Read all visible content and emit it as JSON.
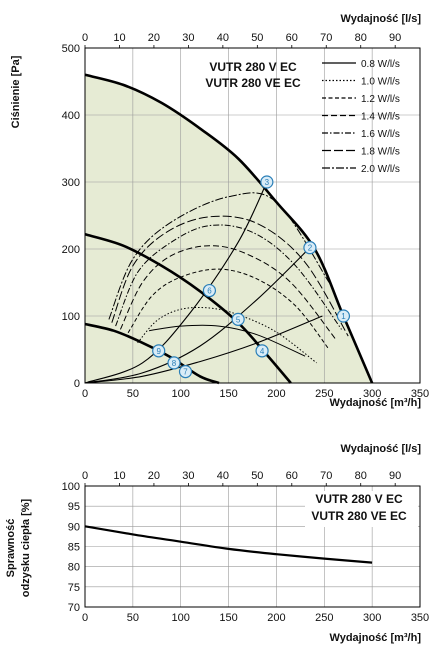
{
  "chart_data": [
    {
      "type": "line",
      "xlabel": "Wydajność [m³/h]",
      "ylabel": "Ciśnienie [Pa]",
      "x2label": "Wydajność [l/s]",
      "xlim": [
        0,
        350
      ],
      "ylim": [
        0,
        500
      ],
      "x2lim": [
        0,
        97.2
      ],
      "xticks": [
        "0",
        "50",
        "100",
        "150",
        "200",
        "250",
        "300",
        "350"
      ],
      "yticks": [
        "0",
        "100",
        "200",
        "300",
        "400",
        "500"
      ],
      "x2ticks": [
        "0",
        "10",
        "20",
        "30",
        "40",
        "50",
        "60",
        "70",
        "80",
        "90"
      ],
      "models": [
        "VUTR 280 V EC",
        "VUTR 280 VE EC"
      ],
      "legend_position": "top-right",
      "grid": true,
      "fan_curves": [
        {
          "name": "max",
          "x": [
            0,
            40,
            80,
            120,
            160,
            200,
            240,
            270,
            300
          ],
          "y": [
            460,
            445,
            418,
            380,
            335,
            270,
            200,
            100,
            0
          ]
        },
        {
          "name": "mid",
          "x": [
            0,
            40,
            80,
            120,
            160,
            190,
            215
          ],
          "y": [
            222,
            205,
            175,
            137,
            90,
            42,
            0
          ]
        },
        {
          "name": "low",
          "x": [
            0,
            30,
            60,
            90,
            120,
            140
          ],
          "y": [
            88,
            78,
            60,
            38,
            10,
            0
          ]
        }
      ],
      "system_curves": [
        {
          "x": [
            0,
            60,
            120,
            180,
            248
          ],
          "y": [
            0,
            10,
            32,
            60,
            100
          ]
        },
        {
          "x": [
            0,
            60,
            120,
            180,
            235
          ],
          "y": [
            0,
            15,
            55,
            125,
            202
          ]
        },
        {
          "x": [
            0,
            60,
            110,
            160,
            190
          ],
          "y": [
            0,
            30,
            105,
            210,
            300
          ]
        }
      ],
      "efficiency_curves": [
        {
          "name": "0.8 W/l/s",
          "dash": "",
          "x": [
            67,
            100,
            140,
            180,
            230
          ],
          "y": [
            78,
            85,
            85,
            72,
            40
          ]
        },
        {
          "name": "1.0 W/l/s",
          "dash": "1.5,2",
          "x": [
            55,
            75,
            100,
            130,
            160,
            200,
            242
          ],
          "y": [
            60,
            93,
            110,
            112,
            102,
            76,
            30
          ]
        },
        {
          "name": "1.2 W/l/s",
          "dash": "4,2.5",
          "x": [
            45,
            70,
            100,
            140,
            180,
            220,
            255
          ],
          "y": [
            75,
            130,
            158,
            170,
            155,
            115,
            50
          ]
        },
        {
          "name": "1.4 W/l/s",
          "dash": "6,3",
          "x": [
            37,
            60,
            90,
            130,
            170,
            215,
            262
          ],
          "y": [
            80,
            150,
            190,
            205,
            192,
            150,
            65
          ]
        },
        {
          "name": "1.6 W/l/s",
          "dash": "6,2,1.5,2",
          "x": [
            32,
            55,
            90,
            130,
            175,
            220,
            268
          ],
          "y": [
            85,
            165,
            210,
            235,
            225,
            175,
            80
          ]
        },
        {
          "name": "1.8 W/l/s",
          "dash": "9,3",
          "x": [
            28,
            50,
            85,
            130,
            180,
            230,
            275
          ],
          "y": [
            90,
            175,
            225,
            248,
            238,
            180,
            70
          ]
        },
        {
          "name": "2.0 W/l/s",
          "dash": "8,2,2,2",
          "x": [
            25,
            50,
            90,
            150,
            200,
            255
          ],
          "y": [
            95,
            185,
            240,
            278,
            270,
            150
          ]
        }
      ],
      "operating_points": [
        {
          "label": "1",
          "x": 270,
          "y": 100
        },
        {
          "label": "2",
          "x": 235,
          "y": 202
        },
        {
          "label": "3",
          "x": 190,
          "y": 300
        },
        {
          "label": "4",
          "x": 185,
          "y": 48
        },
        {
          "label": "5",
          "x": 160,
          "y": 95
        },
        {
          "label": "6",
          "x": 130,
          "y": 138
        },
        {
          "label": "7",
          "x": 105,
          "y": 17
        },
        {
          "label": "8",
          "x": 93,
          "y": 30
        },
        {
          "label": "9",
          "x": 77,
          "y": 48
        }
      ]
    },
    {
      "type": "line",
      "xlabel": "Wydajność [m³/h]",
      "ylabel": "Sprawność odzysku ciepła [%]",
      "x2label": "Wydajność [l/s]",
      "xlim": [
        0,
        350
      ],
      "ylim": [
        70,
        100
      ],
      "x2lim": [
        0,
        97.2
      ],
      "xticks": [
        "0",
        "50",
        "100",
        "150",
        "200",
        "250",
        "300",
        "350"
      ],
      "yticks": [
        "70",
        "75",
        "80",
        "85",
        "90",
        "95",
        "100"
      ],
      "x2ticks": [
        "0",
        "10",
        "20",
        "30",
        "40",
        "50",
        "60",
        "70",
        "80",
        "90"
      ],
      "models": [
        "VUTR 280 V EC",
        "VUTR 280 VE EC"
      ],
      "grid": true,
      "series": [
        {
          "x": [
            0,
            50,
            100,
            150,
            200,
            250,
            300
          ],
          "y": [
            90,
            88,
            86.2,
            84.4,
            83.1,
            82,
            81
          ]
        }
      ]
    }
  ],
  "colors": {
    "fill": "#e6ebd4",
    "grid": "#9a9a9a",
    "marker": "#2a7fb8",
    "marker_fill": "#d9ecf7",
    "line": "#000000"
  },
  "labels": {
    "ylabel1a": "Ciśnienie [Pa]",
    "ylabel2a": "Sprawność",
    "ylabel2b": "odzysku ciepła [%]"
  }
}
